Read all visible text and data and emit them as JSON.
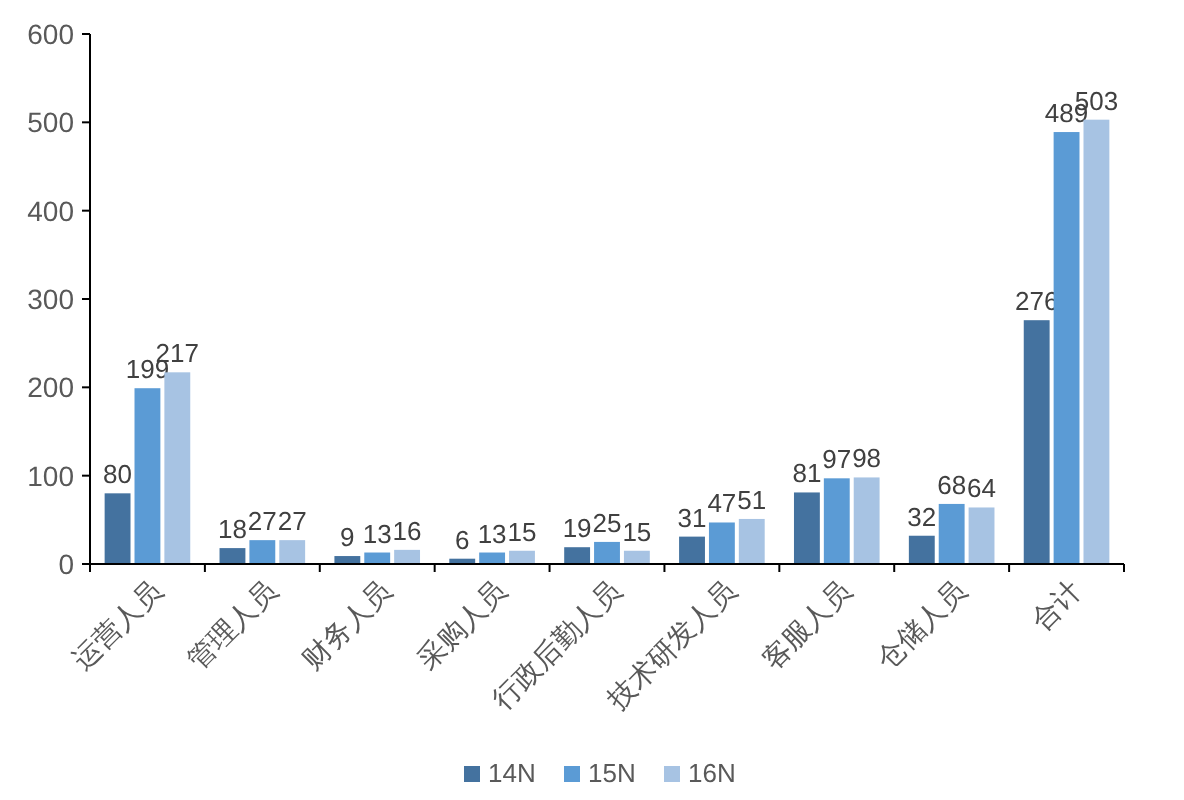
{
  "chart_data": {
    "type": "bar",
    "categories": [
      "运营人员",
      "管理人员",
      "财务人员",
      "采购人员",
      "行政后勤人员",
      "技术研发人员",
      "客服人员",
      "仓储人员",
      "合计"
    ],
    "series": [
      {
        "name": "14N",
        "color": "#44729f",
        "values": [
          80,
          18,
          9,
          6,
          19,
          31,
          81,
          32,
          276
        ]
      },
      {
        "name": "15N",
        "color": "#5b9bd5",
        "values": [
          199,
          27,
          13,
          13,
          25,
          47,
          97,
          68,
          489
        ]
      },
      {
        "name": "16N",
        "color": "#a7c3e3",
        "values": [
          217,
          27,
          16,
          15,
          15,
          51,
          98,
          64,
          503
        ]
      }
    ],
    "ylim": [
      0,
      600
    ],
    "yticks": [
      0,
      100,
      200,
      300,
      400,
      500,
      600
    ],
    "data_labels": true,
    "grid": false,
    "legend": "bottom"
  }
}
